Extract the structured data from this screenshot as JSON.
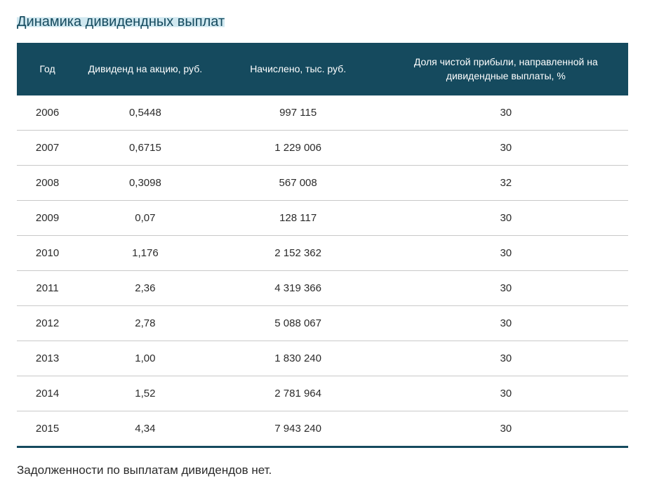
{
  "title": "Динамика дивидендных выплат",
  "columns": [
    "Год",
    "Дивиденд на акцию, руб.",
    "Начислено, тыс. руб.",
    "Доля чистой прибыли, направленной на дивидендные выплаты, %"
  ],
  "rows": [
    {
      "year": "2006",
      "dividend": "0,5448",
      "accrued": "997 115",
      "share": "30"
    },
    {
      "year": "2007",
      "dividend": "0,6715",
      "accrued": "1 229 006",
      "share": "30"
    },
    {
      "year": "2008",
      "dividend": "0,3098",
      "accrued": "567 008",
      "share": "32"
    },
    {
      "year": "2009",
      "dividend": "0,07",
      "accrued": "128 117",
      "share": "30"
    },
    {
      "year": "2010",
      "dividend": "1,176",
      "accrued": "2 152 362",
      "share": "30"
    },
    {
      "year": "2011",
      "dividend": "2,36",
      "accrued": "4 319 366",
      "share": "30"
    },
    {
      "year": "2012",
      "dividend": "2,78",
      "accrued": "5 088 067",
      "share": "30"
    },
    {
      "year": "2013",
      "dividend": "1,00",
      "accrued": "1 830 240",
      "share": "30"
    },
    {
      "year": "2014",
      "dividend": "1,52",
      "accrued": "2 781 964",
      "share": "30"
    },
    {
      "year": "2015",
      "dividend": "4,34",
      "accrued": "7 943 240",
      "share": "30"
    }
  ],
  "footnote": "Задолженности по выплатам дивидендов нет.",
  "styling": {
    "header_bg": "#154a5e",
    "header_text_color": "#ffffff",
    "row_border_color": "#c9c9c9",
    "table_bottom_border": "#154a5e",
    "title_color": "#154a5e",
    "body_text_color": "#2b2b2b",
    "title_fontsize": 20,
    "header_fontsize": 14,
    "cell_fontsize": 15,
    "footnote_fontsize": 17,
    "col_widths_pct": [
      10,
      22,
      28,
      40
    ]
  }
}
